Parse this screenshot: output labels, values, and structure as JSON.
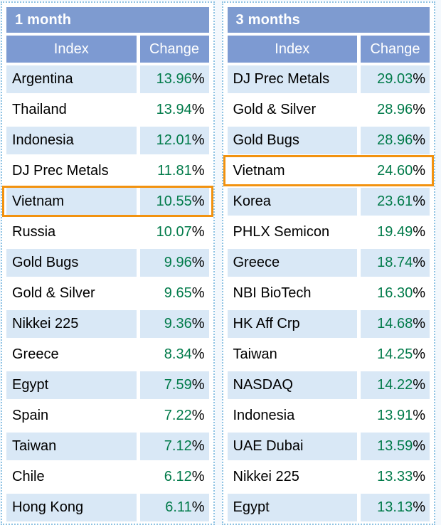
{
  "colors": {
    "page_bg": "#f3f8fd",
    "panel_border_blue": "#8fc3e3",
    "header_blue": "#7e9bd0",
    "subheader_blue": "#7d9ad2",
    "row_alt_blue": "#d9e8f6",
    "row_white": "#ffffff",
    "change_green": "#007a49",
    "highlight_orange": "#f2920f"
  },
  "tables": [
    {
      "title": "1 month",
      "columns": [
        "Index",
        "Change"
      ],
      "highlighted_row": "Vietnam",
      "rows": [
        {
          "index": "Argentina",
          "change": "13.96%",
          "highlight": false
        },
        {
          "index": "Thailand",
          "change": "13.94%",
          "highlight": false
        },
        {
          "index": "Indonesia",
          "change": "12.01%",
          "highlight": false
        },
        {
          "index": "DJ Prec Metals",
          "change": "11.81%",
          "highlight": false
        },
        {
          "index": "Vietnam",
          "change": "10.55%",
          "highlight": true
        },
        {
          "index": "Russia",
          "change": "10.07%",
          "highlight": false
        },
        {
          "index": "Gold Bugs",
          "change": "9.96%",
          "highlight": false
        },
        {
          "index": "Gold & Silver",
          "change": "9.65%",
          "highlight": false
        },
        {
          "index": "Nikkei 225",
          "change": "9.36%",
          "highlight": false
        },
        {
          "index": "Greece",
          "change": "8.34%",
          "highlight": false
        },
        {
          "index": "Egypt",
          "change": "7.59%",
          "highlight": false
        },
        {
          "index": "Spain",
          "change": "7.22%",
          "highlight": false
        },
        {
          "index": "Taiwan",
          "change": "7.12%",
          "highlight": false
        },
        {
          "index": "Chile",
          "change": "6.12%",
          "highlight": false
        },
        {
          "index": "Hong Kong",
          "change": "6.11%",
          "highlight": false
        }
      ]
    },
    {
      "title": "3 months",
      "columns": [
        "Index",
        "Change"
      ],
      "highlighted_row": "Vietnam",
      "rows": [
        {
          "index": "DJ Prec Metals",
          "change": "29.03%",
          "highlight": false
        },
        {
          "index": "Gold & Silver",
          "change": "28.96%",
          "highlight": false
        },
        {
          "index": "Gold Bugs",
          "change": "28.96%",
          "highlight": false
        },
        {
          "index": "Vietnam",
          "change": "24.60%",
          "highlight": true
        },
        {
          "index": "Korea",
          "change": "23.61%",
          "highlight": false
        },
        {
          "index": "PHLX Semicon",
          "change": "19.49%",
          "highlight": false
        },
        {
          "index": "Greece",
          "change": "18.74%",
          "highlight": false
        },
        {
          "index": "NBI BioTech",
          "change": "16.30%",
          "highlight": false
        },
        {
          "index": "HK Aff Crp",
          "change": "14.68%",
          "highlight": false
        },
        {
          "index": "Taiwan",
          "change": "14.25%",
          "highlight": false
        },
        {
          "index": "NASDAQ",
          "change": "14.22%",
          "highlight": false
        },
        {
          "index": "Indonesia",
          "change": "13.91%",
          "highlight": false
        },
        {
          "index": "UAE Dubai",
          "change": "13.59%",
          "highlight": false
        },
        {
          "index": "Nikkei 225",
          "change": "13.33%",
          "highlight": false
        },
        {
          "index": "Egypt",
          "change": "13.13%",
          "highlight": false
        }
      ]
    }
  ],
  "chart_data": [
    {
      "type": "table",
      "title": "1 month",
      "columns": [
        "Index",
        "Change"
      ],
      "categories": [
        "Argentina",
        "Thailand",
        "Indonesia",
        "DJ Prec Metals",
        "Vietnam",
        "Russia",
        "Gold Bugs",
        "Gold & Silver",
        "Nikkei 225",
        "Greece",
        "Egypt",
        "Spain",
        "Taiwan",
        "Chile",
        "Hong Kong"
      ],
      "values": [
        13.96,
        13.94,
        12.01,
        11.81,
        10.55,
        10.07,
        9.96,
        9.65,
        9.36,
        8.34,
        7.59,
        7.22,
        7.12,
        6.12,
        6.11
      ],
      "unit": "%",
      "highlighted_category": "Vietnam"
    },
    {
      "type": "table",
      "title": "3 months",
      "columns": [
        "Index",
        "Change"
      ],
      "categories": [
        "DJ Prec Metals",
        "Gold & Silver",
        "Gold Bugs",
        "Vietnam",
        "Korea",
        "PHLX Semicon",
        "Greece",
        "NBI BioTech",
        "HK Aff Crp",
        "Taiwan",
        "NASDAQ",
        "Indonesia",
        "UAE Dubai",
        "Nikkei 225",
        "Egypt"
      ],
      "values": [
        29.03,
        28.96,
        28.96,
        24.6,
        23.61,
        19.49,
        18.74,
        16.3,
        14.68,
        14.25,
        14.22,
        13.91,
        13.59,
        13.33,
        13.13
      ],
      "unit": "%",
      "highlighted_category": "Vietnam"
    }
  ]
}
